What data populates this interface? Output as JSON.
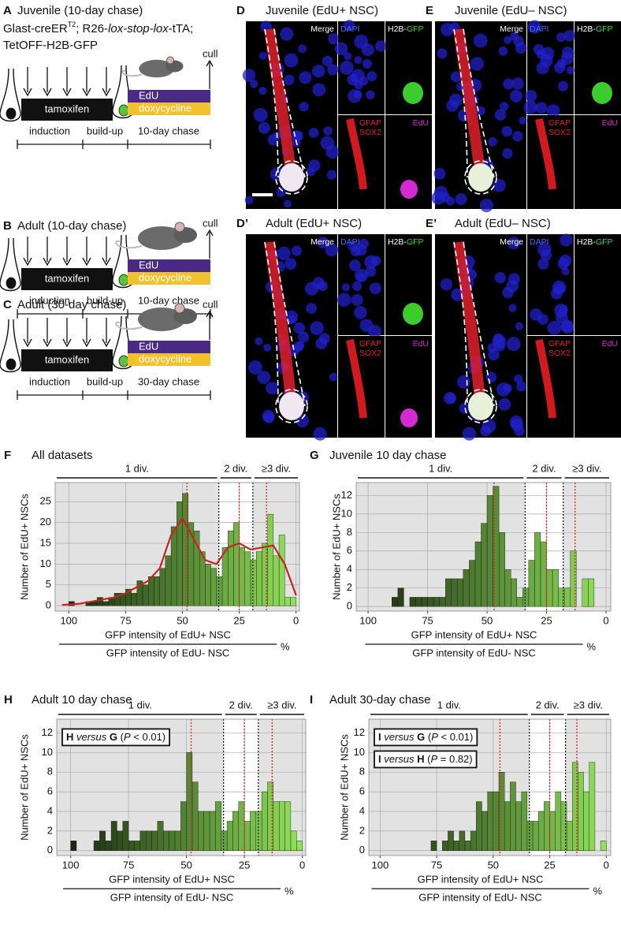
{
  "schematics": [
    {
      "letter": "A",
      "title": "Juvenile (10-day chase)",
      "genotype": [
        [
          "Glast-creER",
          "T2",
          "; R26-",
          "lox-stop-lox",
          "-tTA;"
        ],
        [
          "TetOFF-H2B-GFP"
        ]
      ],
      "tamoxifen": "tamoxifen",
      "edu": "EdU",
      "doxycycline": "doxycycline",
      "cull": "cull",
      "induction": "induction",
      "buildup": "build-up",
      "chase": "10-day chase"
    },
    {
      "letter": "B",
      "title": "Adult (10-day chase)",
      "tamoxifen": "tamoxifen",
      "edu": "EdU",
      "doxycycline": "doxycycline",
      "cull": "cull",
      "induction": "induction",
      "buildup": "build-up",
      "chase": "10-day chase"
    },
    {
      "letter": "C",
      "title": "Adult (30-day chase)",
      "tamoxifen": "tamoxifen",
      "edu": "EdU",
      "doxycycline": "doxycycline",
      "cull": "cull",
      "induction": "induction",
      "buildup": "build-up",
      "chase": "30-day chase"
    }
  ],
  "micrographs": [
    {
      "letter": "D",
      "title": "Juvenile (EdU+ NSC)",
      "merge": "Merge",
      "dapi": "DAPI",
      "h2b": "H2B-",
      "gfp": "GFP",
      "gfap": "GFAP",
      "sox2": "SOX2",
      "edu": "EdU"
    },
    {
      "letter": "E",
      "title": "Juvenile (EdU– NSC)",
      "merge": "Merge",
      "dapi": "DAPI",
      "h2b": "H2B-",
      "gfp": "GFP",
      "gfap": "GFAP",
      "sox2": "SOX2",
      "edu": "EdU"
    },
    {
      "letter": "D’",
      "title": "Adult (EdU+ NSC)",
      "merge": "Merge",
      "dapi": "DAPI",
      "h2b": "H2B-",
      "gfp": "GFP",
      "gfap": "GFAP",
      "sox2": "SOX2",
      "edu": "EdU"
    },
    {
      "letter": "E’",
      "title": "Adult (EdU– NSC)",
      "merge": "Merge",
      "dapi": "DAPI",
      "h2b": "H2B-",
      "gfp": "GFP",
      "gfap": "GFAP",
      "sox2": "SOX2",
      "edu": "EdU"
    }
  ],
  "chart_data": [
    {
      "type": "histogram",
      "letter": "F",
      "title": "All datasets",
      "y_label": "Number of EdU+ NSCs",
      "x_label_top": "GFP intensity of EdU+ NSC",
      "x_label_bottom": "GFP intensity of EdU- NSC",
      "x_label_unit": "%",
      "bins": [
        0,
        2.5,
        5,
        7.5,
        10,
        12.5,
        15,
        17.5,
        20,
        22.5,
        25,
        27.5,
        30,
        32.5,
        35,
        37.5,
        40,
        42.5,
        45,
        47.5,
        50,
        52.5,
        55,
        57.5,
        60,
        62.5,
        65,
        67.5,
        70,
        72.5,
        75,
        77.5,
        80,
        82.5,
        85,
        87.5,
        90,
        92.5,
        95,
        97.5,
        100,
        102.5
      ],
      "values": [
        2,
        2,
        17,
        12,
        22,
        15,
        13,
        11,
        13,
        14,
        20,
        18,
        14,
        7,
        9,
        10,
        13,
        18,
        20,
        27,
        25,
        19,
        12,
        9,
        7,
        7,
        5,
        6,
        3,
        4,
        3,
        3,
        2,
        1,
        2,
        1,
        1,
        0,
        0,
        1,
        0
      ],
      "xlim": [
        106,
        -1.5
      ],
      "ylim": [
        -1.3,
        29.6
      ],
      "xticks": [
        100,
        75,
        50,
        25,
        0
      ],
      "yticks": [
        0,
        5,
        10,
        15,
        20,
        25
      ],
      "grid": true,
      "background": "#e2e2e2",
      "color_range": [
        "#93e35c",
        "#14220d"
      ],
      "divisions": [
        {
          "label": "1 div.",
          "from": 106,
          "to": 34,
          "shaded": true
        },
        {
          "label": "2 div.",
          "from": 34,
          "to": 19,
          "shaded": false
        },
        {
          "label": "≥3 div.",
          "from": 19,
          "to": -1.5,
          "shaded": true
        }
      ],
      "red_lines": [
        48,
        25,
        13
      ],
      "red_line_color": "#d0312d",
      "curve": {
        "color": "#c0271f",
        "x": [
          0,
          5,
          10,
          15,
          20,
          25,
          30,
          35,
          40,
          45,
          50,
          55,
          60,
          65,
          70,
          75,
          80,
          85,
          90,
          95,
          100,
          103
        ],
        "values": [
          2.5,
          10,
          14.5,
          14,
          13.5,
          15,
          14,
          10,
          11,
          16,
          21,
          17,
          9,
          6,
          4.5,
          3,
          2,
          1.5,
          1,
          0.5,
          0.3,
          0.2
        ]
      }
    },
    {
      "type": "histogram",
      "letter": "G",
      "title": "Juvenile 10 day chase",
      "y_label": "Number of EdU+ NSCs",
      "x_label_top": "GFP intensity of EdU+ NSC",
      "x_label_bottom": "GFP intensity of EdU- NSC",
      "x_label_unit": "%",
      "bins": [
        0,
        2.5,
        5,
        7.5,
        10,
        12.5,
        15,
        17.5,
        20,
        22.5,
        25,
        27.5,
        30,
        32.5,
        35,
        37.5,
        40,
        42.5,
        45,
        47.5,
        50,
        52.5,
        55,
        57.5,
        60,
        62.5,
        65,
        67.5,
        70,
        72.5,
        75,
        77.5,
        80,
        82.5,
        85,
        87.5,
        90,
        92.5,
        95,
        97.5,
        100,
        102.5
      ],
      "values": [
        0,
        0,
        3,
        3,
        0,
        6,
        2,
        2,
        4,
        4,
        7,
        8,
        5,
        2,
        1,
        3,
        4,
        8,
        13,
        12,
        9,
        7,
        5,
        4,
        3,
        3,
        3,
        1,
        1,
        1,
        1,
        1,
        1,
        0,
        2,
        1,
        0,
        0,
        0,
        0,
        0
      ],
      "xlim": [
        105,
        -2
      ],
      "ylim": [
        -0.5,
        13.4
      ],
      "xticks": [
        100,
        75,
        50,
        25,
        0
      ],
      "yticks": [
        0,
        2,
        4,
        6,
        8,
        10,
        12
      ],
      "grid": true,
      "background": "#e2e2e2",
      "color_range": [
        "#93e35c",
        "#14220d"
      ],
      "divisions": [
        {
          "label": "1 div.",
          "from": 105,
          "to": 34,
          "shaded": true
        },
        {
          "label": "2 div.",
          "from": 34,
          "to": 18,
          "shaded": false
        },
        {
          "label": "≥3 div.",
          "from": 18,
          "to": -2,
          "shaded": true
        }
      ],
      "red_lines": [
        47,
        25,
        13
      ],
      "red_line_color": "#d0312d"
    },
    {
      "type": "histogram",
      "letter": "H",
      "title": "Adult 10 day chase",
      "y_label": "Number of EdU+ NSCs",
      "x_label_top": "GFP intensity of EdU+ NSC",
      "x_label_bottom": "GFP intensity of EdU- NSC",
      "x_label_unit": "%",
      "bins": [
        0,
        2.5,
        5,
        7.5,
        10,
        12.5,
        15,
        17.5,
        20,
        22.5,
        25,
        27.5,
        30,
        32.5,
        35,
        37.5,
        40,
        42.5,
        45,
        47.5,
        50,
        52.5,
        55,
        57.5,
        60,
        62.5,
        65,
        67.5,
        70,
        72.5,
        75,
        77.5,
        80,
        82.5,
        85,
        87.5,
        90,
        92.5,
        95,
        97.5,
        100,
        102.5
      ],
      "values": [
        1,
        2,
        5,
        5,
        5,
        7,
        6,
        4,
        4,
        3,
        5,
        4,
        3,
        2,
        5,
        4,
        4,
        4,
        7,
        10,
        5,
        2,
        2,
        2,
        3,
        2,
        2,
        2,
        1,
        1,
        3,
        2,
        3,
        1,
        2,
        1,
        0,
        0,
        0,
        1,
        0
      ],
      "xlim": [
        106,
        -1.5
      ],
      "ylim": [
        -0.5,
        13.4
      ],
      "xticks": [
        100,
        75,
        50,
        25,
        0
      ],
      "yticks": [
        0,
        2,
        4,
        6,
        8,
        10,
        12
      ],
      "grid": true,
      "background": "#e2e2e2",
      "color_range": [
        "#93e35c",
        "#14220d"
      ],
      "divisions": [
        {
          "label": "1 div.",
          "from": 106,
          "to": 34,
          "shaded": true
        },
        {
          "label": "2 div.",
          "from": 34,
          "to": 19,
          "shaded": false
        },
        {
          "label": "≥3 div.",
          "from": 19,
          "to": -1.5,
          "shaded": true
        }
      ],
      "red_lines": [
        48,
        25,
        13
      ],
      "red_line_color": "#d0312d",
      "annotations": [
        [
          "H",
          " versus ",
          "G",
          " (",
          "P",
          " < 0.01)"
        ]
      ]
    },
    {
      "type": "histogram",
      "letter": "I",
      "title": "Adult 30-day chase",
      "y_label": "Number of EdU+ NSCs",
      "x_label_top": "GFP intensity of EdU+ NSC",
      "x_label_bottom": "GFP intensity of EdU- NSC",
      "x_label_unit": "%",
      "bins": [
        0,
        2.5,
        5,
        7.5,
        10,
        12.5,
        15,
        17.5,
        20,
        22.5,
        25,
        27.5,
        30,
        32.5,
        35,
        37.5,
        40,
        42.5,
        45,
        47.5,
        50,
        52.5,
        55,
        57.5,
        60,
        62.5,
        65,
        67.5,
        70,
        72.5,
        75,
        77.5,
        80,
        82.5,
        85,
        87.5,
        90,
        92.5,
        95,
        97.5,
        100,
        102.5
      ],
      "values": [
        1,
        0,
        9,
        6,
        8,
        9,
        3,
        5,
        6,
        4,
        5,
        4,
        3,
        3,
        6,
        5,
        7,
        5,
        8,
        6,
        6,
        4,
        5,
        2,
        1,
        2,
        1,
        2,
        1,
        0,
        1,
        0,
        0,
        0,
        0,
        0,
        0,
        0,
        0,
        0,
        0
      ],
      "xlim": [
        105,
        -2
      ],
      "ylim": [
        -0.5,
        13.4
      ],
      "xticks": [
        100,
        75,
        50,
        25,
        0
      ],
      "yticks": [
        0,
        2,
        4,
        6,
        8,
        10,
        12
      ],
      "grid": true,
      "background": "#e2e2e2",
      "color_range": [
        "#93e35c",
        "#14220d"
      ],
      "divisions": [
        {
          "label": "1 div.",
          "from": 105,
          "to": 34,
          "shaded": true
        },
        {
          "label": "2 div.",
          "from": 34,
          "to": 18,
          "shaded": false
        },
        {
          "label": "≥3 div.",
          "from": 18,
          "to": -2,
          "shaded": true
        }
      ],
      "red_lines": [
        47,
        25,
        13
      ],
      "red_line_color": "#d0312d",
      "annotations": [
        [
          "I",
          " versus ",
          "G",
          " (",
          "P",
          " < 0.01)"
        ],
        [
          "I",
          " versus ",
          "H",
          " (",
          "P",
          " = 0.82)"
        ]
      ]
    }
  ]
}
